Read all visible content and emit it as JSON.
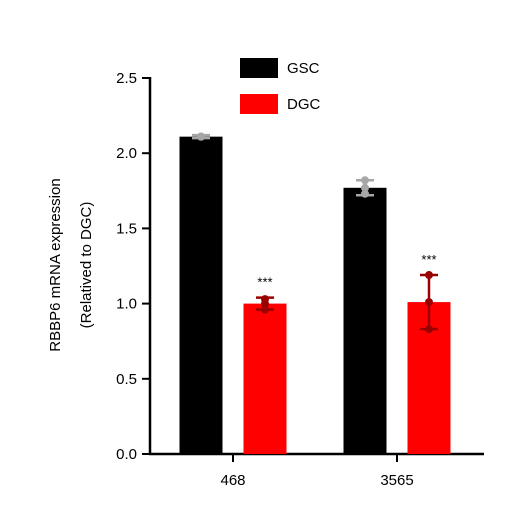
{
  "chart_data": {
    "type": "bar",
    "categories": [
      "468",
      "3565"
    ],
    "series": [
      {
        "name": "GSC",
        "color": "#000000",
        "error_color": "#a6a6a6",
        "values": [
          2.11,
          1.77
        ],
        "error_lower": [
          2.1,
          1.72
        ],
        "error_upper": [
          2.12,
          1.82
        ],
        "points": [
          [
            2.11,
            2.11,
            2.11
          ],
          [
            1.73,
            1.77,
            1.82
          ]
        ],
        "significance": [
          "",
          ""
        ]
      },
      {
        "name": "DGC",
        "color": "#ff0000",
        "error_color": "#990000",
        "values": [
          1.0,
          1.01
        ],
        "error_lower": [
          0.96,
          0.83
        ],
        "error_upper": [
          1.04,
          1.19
        ],
        "points": [
          [
            0.96,
            1.0,
            1.03
          ],
          [
            0.83,
            1.01,
            1.19
          ]
        ],
        "significance": [
          "***",
          "***"
        ]
      }
    ],
    "ylabel_line1": "RBBP6 mRNA expression",
    "ylabel_line2": "(Relatived to DGC)",
    "xlabel": "",
    "ylim": [
      0,
      2.5
    ],
    "yticks": [
      "0.0",
      "0.5",
      "1.0",
      "1.5",
      "2.0",
      "2.5"
    ],
    "legend_position": "top-center",
    "grid": false
  }
}
